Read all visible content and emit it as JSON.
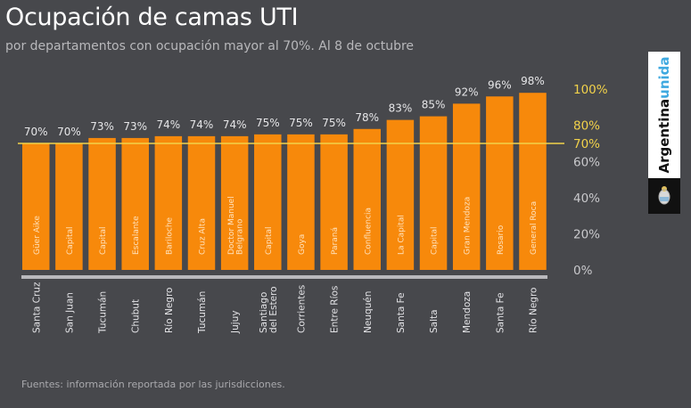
{
  "header": {
    "title": "Ocupación de camas UTI",
    "subtitle": "por departamentos con ocupación mayor al 70%. Al 8 de octubre"
  },
  "footer": {
    "source": "Fuentes: información reportada por las jurisdicciones."
  },
  "badge": {
    "text_main": "Argentina",
    "text_accent": "unida",
    "icon": "coat-of-arms-icon"
  },
  "colors": {
    "background": "#47484c",
    "bar": "#f7890b",
    "reference_line": "#f2d24a",
    "highlight_tick": "#f2d24a",
    "tick": "#c9c9cc",
    "badge_accent": "#3fa9e0"
  },
  "chart_data": {
    "type": "bar",
    "title": "Ocupación de camas UTI",
    "subtitle": "por departamentos con ocupación mayor al 70%. Al 8 de octubre",
    "xlabel": "",
    "ylabel": "",
    "ylim": [
      0,
      100
    ],
    "grid": false,
    "legend": "none",
    "unit": "%",
    "y_ticks": [
      {
        "value": 100,
        "label": "100%",
        "highlight": true
      },
      {
        "value": 80,
        "label": "80%",
        "highlight": true
      },
      {
        "value": 70,
        "label": "70%",
        "highlight": true
      },
      {
        "value": 60,
        "label": "60%",
        "highlight": false
      },
      {
        "value": 40,
        "label": "40%",
        "highlight": false
      },
      {
        "value": 20,
        "label": "20%",
        "highlight": false
      },
      {
        "value": 0,
        "label": "0%",
        "highlight": false
      }
    ],
    "reference_line": {
      "value": 70,
      "label": "70%"
    },
    "categories": [
      "Güer Aike",
      "Capital",
      "Capital",
      "Escalante",
      "Bariloche",
      "Cruz Alta",
      "Doctor Manuel Belgrano",
      "Capital",
      "Goya",
      "Paraná",
      "Confluencia",
      "La Capital",
      "Capital",
      "Gran Mendoza",
      "Rosario",
      "General Roca"
    ],
    "category_lines": [
      [
        "Güer Aike"
      ],
      [
        "Capital"
      ],
      [
        "Capital"
      ],
      [
        "Escalante"
      ],
      [
        "Bariloche"
      ],
      [
        "Cruz Alta"
      ],
      [
        "Doctor Manuel",
        "Belgrano"
      ],
      [
        "Capital"
      ],
      [
        "Goya"
      ],
      [
        "Paraná"
      ],
      [
        "Confluencia"
      ],
      [
        "La Capital"
      ],
      [
        "Capital"
      ],
      [
        "Gran Mendoza"
      ],
      [
        "Rosario"
      ],
      [
        "General Roca"
      ]
    ],
    "provinces": [
      "Santa Cruz",
      "San Juan",
      "Tucumán",
      "Chubut",
      "Río Negro",
      "Tucumán",
      "Jujuy",
      "Santiago del Estero",
      "Corrientes",
      "Entre Ríos",
      "Neuquén",
      "Santa Fe",
      "Salta",
      "Mendoza",
      "Santa Fe",
      "Río Negro"
    ],
    "province_lines": [
      [
        "Santa Cruz"
      ],
      [
        "San Juan"
      ],
      [
        "Tucumán"
      ],
      [
        "Chubut"
      ],
      [
        "Río Negro"
      ],
      [
        "Tucumán"
      ],
      [
        "Jujuy"
      ],
      [
        "Santiago",
        "del Estero"
      ],
      [
        "Corrientes"
      ],
      [
        "Entre Ríos"
      ],
      [
        "Neuquén"
      ],
      [
        "Santa Fe"
      ],
      [
        "Salta"
      ],
      [
        "Mendoza"
      ],
      [
        "Santa Fe"
      ],
      [
        "Río Negro"
      ]
    ],
    "values": [
      70,
      70,
      73,
      73,
      74,
      74,
      74,
      75,
      75,
      75,
      78,
      83,
      85,
      92,
      96,
      98
    ],
    "value_labels": [
      "70%",
      "70%",
      "73%",
      "73%",
      "74%",
      "74%",
      "74%",
      "75%",
      "75%",
      "75%",
      "78%",
      "83%",
      "85%",
      "92%",
      "96%",
      "98%"
    ]
  }
}
